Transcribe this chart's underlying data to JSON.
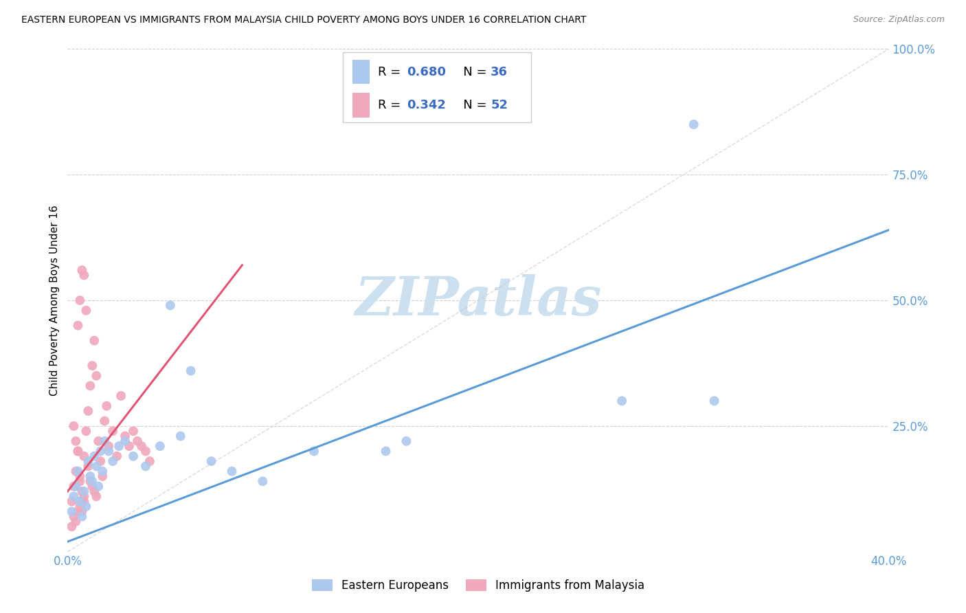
{
  "title": "EASTERN EUROPEAN VS IMMIGRANTS FROM MALAYSIA CHILD POVERTY AMONG BOYS UNDER 16 CORRELATION CHART",
  "source": "Source: ZipAtlas.com",
  "ylabel": "Child Poverty Among Boys Under 16",
  "xlim": [
    0.0,
    0.4
  ],
  "ylim": [
    0.0,
    1.0
  ],
  "xticks": [
    0.0,
    0.1,
    0.2,
    0.3,
    0.4
  ],
  "yticks": [
    0.0,
    0.25,
    0.5,
    0.75,
    1.0
  ],
  "xtick_labels": [
    "0.0%",
    "",
    "",
    "",
    "40.0%"
  ],
  "ytick_labels": [
    "",
    "25.0%",
    "50.0%",
    "75.0%",
    "100.0%"
  ],
  "blue_R": 0.68,
  "blue_N": 36,
  "pink_R": 0.342,
  "pink_N": 52,
  "blue_color": "#adc8ed",
  "blue_edge": "#adc8ed",
  "pink_color": "#f0a8bc",
  "pink_edge": "#f0a8bc",
  "blue_line_color": "#5b9bd5",
  "pink_line_color": "#e05575",
  "diag_line_color": "#cccccc",
  "legend_R_color": "#3a6bbf",
  "grid_color": "#d0d0d0",
  "background_color": "#ffffff",
  "watermark_color": "#cce0f0",
  "blue_scatter_x": [
    0.002,
    0.003,
    0.004,
    0.005,
    0.006,
    0.007,
    0.008,
    0.009,
    0.01,
    0.011,
    0.012,
    0.013,
    0.014,
    0.015,
    0.016,
    0.017,
    0.018,
    0.02,
    0.022,
    0.025,
    0.028,
    0.032,
    0.038,
    0.045,
    0.05,
    0.055,
    0.06,
    0.07,
    0.08,
    0.095,
    0.12,
    0.155,
    0.165,
    0.27,
    0.305,
    0.315
  ],
  "blue_scatter_y": [
    0.08,
    0.11,
    0.13,
    0.16,
    0.1,
    0.07,
    0.12,
    0.09,
    0.18,
    0.15,
    0.14,
    0.19,
    0.17,
    0.13,
    0.2,
    0.16,
    0.22,
    0.2,
    0.18,
    0.21,
    0.22,
    0.19,
    0.17,
    0.21,
    0.49,
    0.23,
    0.36,
    0.18,
    0.16,
    0.14,
    0.2,
    0.2,
    0.22,
    0.3,
    0.85,
    0.3
  ],
  "pink_scatter_x": [
    0.002,
    0.003,
    0.004,
    0.005,
    0.006,
    0.007,
    0.008,
    0.009,
    0.01,
    0.011,
    0.012,
    0.013,
    0.014,
    0.015,
    0.016,
    0.017,
    0.018,
    0.019,
    0.02,
    0.022,
    0.024,
    0.026,
    0.028,
    0.03,
    0.032,
    0.034,
    0.036,
    0.038,
    0.04,
    0.005,
    0.006,
    0.007,
    0.008,
    0.009,
    0.01,
    0.011,
    0.012,
    0.013,
    0.014,
    0.003,
    0.004,
    0.005,
    0.006,
    0.007,
    0.008,
    0.002,
    0.003,
    0.004,
    0.005,
    0.006,
    0.007,
    0.008
  ],
  "pink_scatter_y": [
    0.1,
    0.13,
    0.16,
    0.2,
    0.14,
    0.08,
    0.19,
    0.24,
    0.28,
    0.33,
    0.37,
    0.42,
    0.35,
    0.22,
    0.18,
    0.15,
    0.26,
    0.29,
    0.21,
    0.24,
    0.19,
    0.31,
    0.23,
    0.21,
    0.24,
    0.22,
    0.21,
    0.2,
    0.18,
    0.45,
    0.5,
    0.56,
    0.55,
    0.48,
    0.17,
    0.14,
    0.13,
    0.12,
    0.11,
    0.25,
    0.22,
    0.2,
    0.15,
    0.12,
    0.1,
    0.05,
    0.07,
    0.06,
    0.08,
    0.09,
    0.1,
    0.11
  ],
  "blue_line_x": [
    0.0,
    0.4
  ],
  "blue_line_y": [
    0.02,
    0.64
  ],
  "pink_line_x": [
    0.0,
    0.085
  ],
  "pink_line_y": [
    0.12,
    0.57
  ],
  "diag_line_x": [
    0.0,
    0.4
  ],
  "diag_line_y": [
    0.0,
    1.0
  ],
  "marker_size": 100
}
